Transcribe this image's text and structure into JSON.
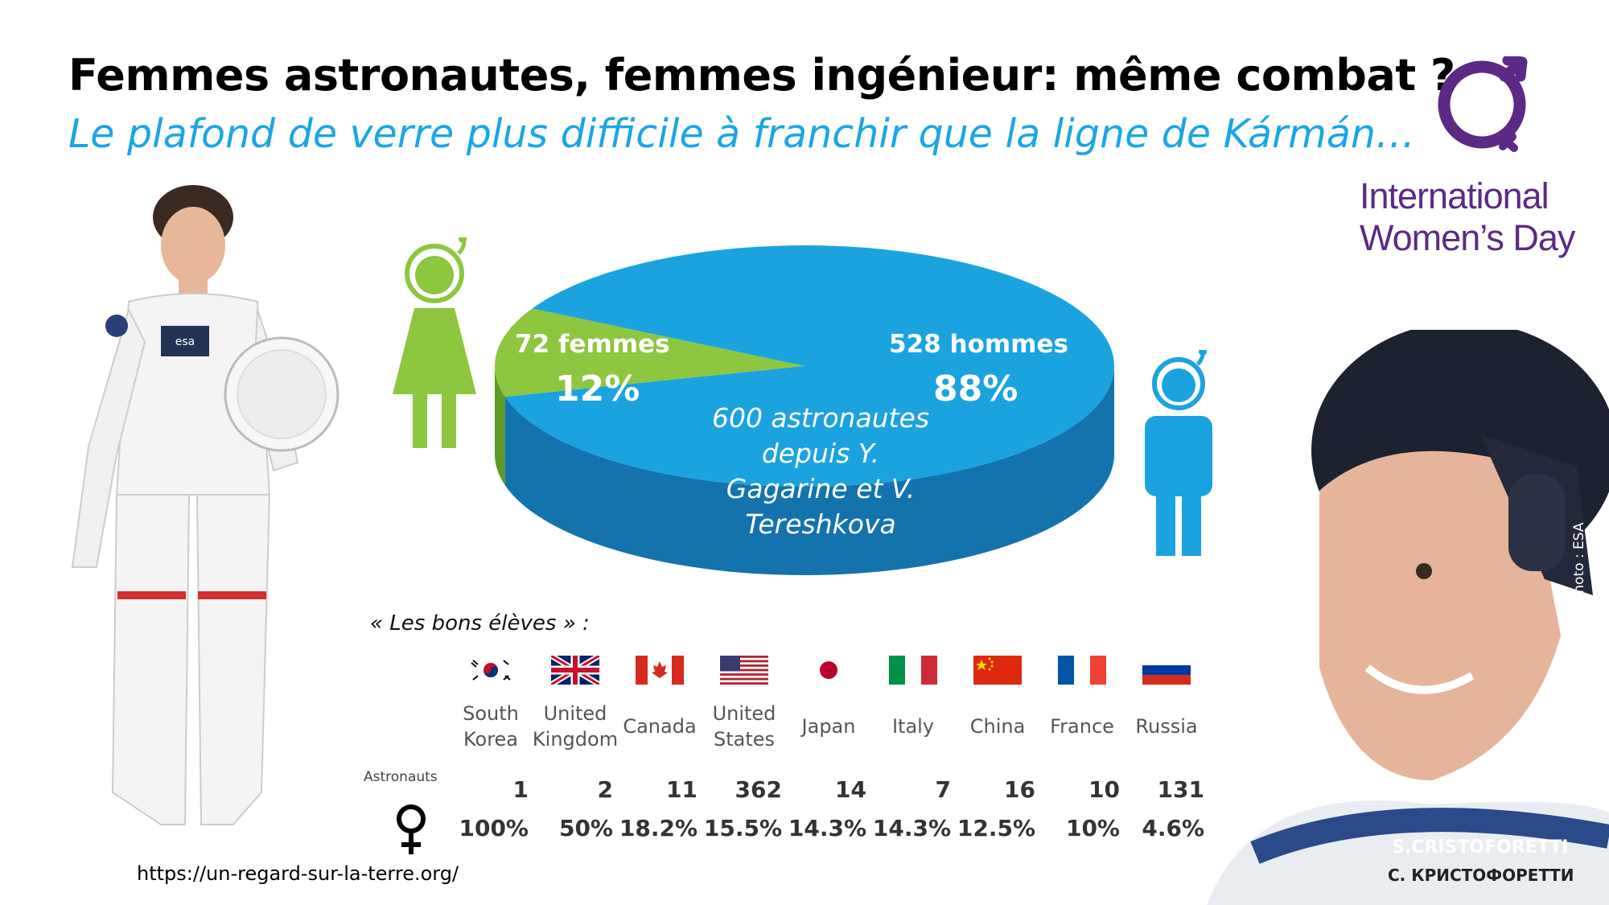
{
  "title": "Femmes astronautes, femmes ingénieur: même combat ?",
  "subtitle": "Le plafond de verre plus difficile à franchir que la ligne de Kármán…",
  "logo": {
    "text_line1": "International",
    "text_line2": "Women’s Day",
    "icon": "venus-arrow-circle-icon",
    "color": "#5c2a86"
  },
  "photo_credit": "Photo : ESA",
  "url": "https://un-regard-sur-la-terre.org/",
  "chart_data": [
    {
      "type": "pie",
      "total_label": "600 astronautes depuis Y. Gagarine et V. Tereshkova",
      "slices": [
        {
          "name": "72 femmes",
          "count": 72,
          "percent_label": "12%",
          "value": 12,
          "color": "#8dc63f"
        },
        {
          "name": "528 hommes",
          "count": 528,
          "percent_label": "88%",
          "value": 88,
          "color": "#1ba3e0"
        }
      ]
    },
    {
      "type": "table",
      "heading": "« Les bons élèves » :",
      "row_labels": {
        "count": "Astronauts",
        "female_icon": "venus-icon"
      },
      "countries": [
        {
          "name_line1": "South",
          "name_line2": "Korea",
          "flag": "flag-south-korea",
          "astronauts": "1",
          "women_pct": "100%"
        },
        {
          "name_line1": "United",
          "name_line2": "Kingdom",
          "flag": "flag-united-kingdom",
          "astronauts": "2",
          "women_pct": "50%"
        },
        {
          "name_line1": "Canada",
          "name_line2": "",
          "flag": "flag-canada",
          "astronauts": "11",
          "women_pct": "18.2%"
        },
        {
          "name_line1": "United",
          "name_line2": "States",
          "flag": "flag-united-states",
          "astronauts": "362",
          "women_pct": "15.5%"
        },
        {
          "name_line1": "Japan",
          "name_line2": "",
          "flag": "flag-japan",
          "astronauts": "14",
          "women_pct": "14.3%"
        },
        {
          "name_line1": "Italy",
          "name_line2": "",
          "flag": "flag-italy",
          "astronauts": "7",
          "women_pct": "14.3%"
        },
        {
          "name_line1": "China",
          "name_line2": "",
          "flag": "flag-china",
          "astronauts": "16",
          "women_pct": "12.5%"
        },
        {
          "name_line1": "France",
          "name_line2": "",
          "flag": "flag-france",
          "astronauts": "10",
          "women_pct": "10%"
        },
        {
          "name_line1": "Russia",
          "name_line2": "",
          "flag": "flag-russia",
          "astronauts": "131",
          "women_pct": "4.6%"
        }
      ]
    }
  ],
  "doll_badge": "esa",
  "suit_nametape": [
    "S.CRISTOFORETTI",
    "С. КРИСТОФОРЕТТИ"
  ]
}
